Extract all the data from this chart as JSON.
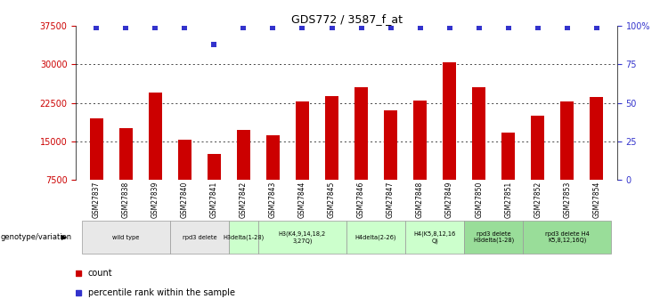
{
  "title": "GDS772 / 3587_f_at",
  "samples": [
    "GSM27837",
    "GSM27838",
    "GSM27839",
    "GSM27840",
    "GSM27841",
    "GSM27842",
    "GSM27843",
    "GSM27844",
    "GSM27845",
    "GSM27846",
    "GSM27847",
    "GSM27848",
    "GSM27849",
    "GSM27850",
    "GSM27851",
    "GSM27852",
    "GSM27853",
    "GSM27854"
  ],
  "bar_values": [
    19500,
    17500,
    24500,
    15300,
    12500,
    17200,
    16200,
    22800,
    23800,
    25500,
    21000,
    23000,
    30500,
    25500,
    16700,
    20000,
    22700,
    23700
  ],
  "percentile_values": [
    99,
    99,
    99,
    99,
    88,
    99,
    99,
    99,
    99,
    99,
    99,
    99,
    99,
    99,
    99,
    99,
    99,
    99
  ],
  "bar_color": "#CC0000",
  "dot_color": "#3333CC",
  "ylim_left": [
    7500,
    37500
  ],
  "ylim_right": [
    0,
    100
  ],
  "yticks_left": [
    7500,
    15000,
    22500,
    30000,
    37500
  ],
  "yticks_right": [
    0,
    25,
    50,
    75,
    100
  ],
  "ytick_labels_right": [
    "0",
    "25",
    "50",
    "75",
    "100%"
  ],
  "grid_lines": [
    15000,
    22500,
    30000
  ],
  "genotype_groups": [
    {
      "label": "wild type",
      "start": 0,
      "end": 3,
      "color": "#e8e8e8"
    },
    {
      "label": "rpd3 delete",
      "start": 3,
      "end": 5,
      "color": "#e8e8e8"
    },
    {
      "label": "H3delta(1-28)",
      "start": 5,
      "end": 6,
      "color": "#ccffcc"
    },
    {
      "label": "H3(K4,9,14,18,2\n3,27Q)",
      "start": 6,
      "end": 9,
      "color": "#ccffcc"
    },
    {
      "label": "H4delta(2-26)",
      "start": 9,
      "end": 11,
      "color": "#ccffcc"
    },
    {
      "label": "H4(K5,8,12,16\nQ)",
      "start": 11,
      "end": 13,
      "color": "#ccffcc"
    },
    {
      "label": "rpd3 delete\nH3delta(1-28)",
      "start": 13,
      "end": 15,
      "color": "#99dd99"
    },
    {
      "label": "rpd3 delete H4\nK5,8,12,16Q)",
      "start": 15,
      "end": 18,
      "color": "#99dd99"
    }
  ],
  "legend_count_color": "#CC0000",
  "legend_dot_color": "#3333CC",
  "xlabel_genotype": "genotype/variation",
  "background_color": "#ffffff",
  "tick_label_color_left": "#CC0000",
  "tick_label_color_right": "#3333CC",
  "label_bg_color": "#d0d0d0"
}
